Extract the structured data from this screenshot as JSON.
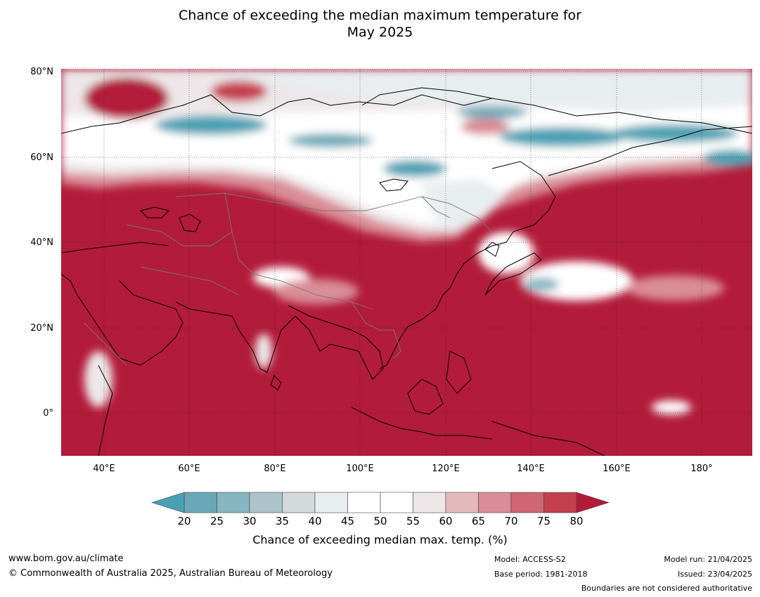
{
  "title_line1": "Chance of exceeding the median maximum temperature for",
  "title_line2": "May 2025",
  "map": {
    "lat_labels": [
      "80°N",
      "60°N",
      "40°N",
      "20°N",
      "0°"
    ],
    "lon_labels": [
      "40°E",
      "60°E",
      "80°E",
      "100°E",
      "120°E",
      "140°E",
      "160°E",
      "180°"
    ],
    "colors": {
      "deep_red": "#b31b3a",
      "red": "#c4404f",
      "mid_red": "#cf6672",
      "pink": "#d98d96",
      "light_pink": "#e4b9bd",
      "pale": "#ede7e9",
      "white": "#ffffff",
      "pale_blue": "#e8edf0",
      "grey": "#d3d8db",
      "grey_blue": "#adc4ca",
      "teal_light": "#86b6c2",
      "teal": "#6aa8b7",
      "teal_dark": "#4aa0b3"
    }
  },
  "colorbar": {
    "ticks": [
      "20",
      "25",
      "30",
      "35",
      "40",
      "45",
      "50",
      "55",
      "60",
      "65",
      "70",
      "75",
      "80"
    ],
    "colors": [
      "#6aa8b7",
      "#86b6c2",
      "#adc4ca",
      "#d3d8db",
      "#e8edf0",
      "#ffffff",
      "#ffffff",
      "#ede7e9",
      "#e4b9bd",
      "#d98d96",
      "#cf6672",
      "#c4404f"
    ],
    "under_color": "#4aa0b3",
    "over_color": "#b31b3a",
    "label": "Chance of exceeding median max. temp. (%)"
  },
  "footer": {
    "website": "www.bom.gov.au/climate",
    "copyright": "© Commonwealth of Australia 2025, Australian Bureau of Meteorology",
    "model": "Model: ACCESS-S2",
    "base_period": "Base period: 1981-2018",
    "model_run": "Model run: 21/04/2025",
    "issued": "Issued: 23/04/2025",
    "disclaimer": "Boundaries are not considered authoritative"
  }
}
